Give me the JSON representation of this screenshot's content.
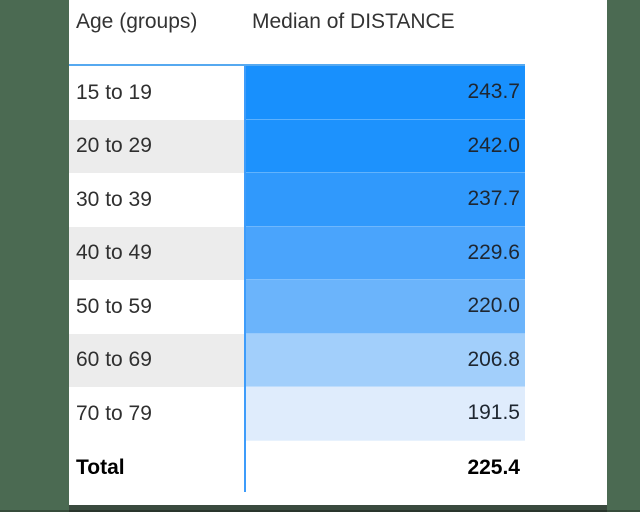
{
  "app": {
    "background_color": "#4b6a52",
    "panel_color": "#ffffff"
  },
  "chart_data": {
    "type": "table",
    "title": "",
    "columns": [
      "Age (groups)",
      "Median of DISTANCE"
    ],
    "rows": [
      {
        "label": "15 to 19",
        "value": "243.7",
        "fill": "#1890fd",
        "label_bg": "#ffffff"
      },
      {
        "label": "20 to 29",
        "value": "242.0",
        "fill": "#1d92fd",
        "label_bg": "#ececec"
      },
      {
        "label": "30 to 39",
        "value": "237.7",
        "fill": "#3099fc",
        "label_bg": "#ffffff"
      },
      {
        "label": "40 to 49",
        "value": "229.6",
        "fill": "#4aa4fc",
        "label_bg": "#ececec"
      },
      {
        "label": "50 to 59",
        "value": "220.0",
        "fill": "#6bb4fb",
        "label_bg": "#ffffff"
      },
      {
        "label": "60 to 69",
        "value": "206.8",
        "fill": "#a2cffb",
        "label_bg": "#ececec"
      },
      {
        "label": "70 to 79",
        "value": "191.5",
        "fill": "#dfecfc",
        "label_bg": "#ffffff"
      }
    ],
    "categories": [
      "15 to 19",
      "20 to 29",
      "30 to 39",
      "40 to 49",
      "50 to 59",
      "60 to 69",
      "70 to 79"
    ],
    "values": [
      243.7,
      242.0,
      237.7,
      229.6,
      220.0,
      206.8,
      191.5
    ],
    "total": {
      "label": "Total",
      "value": "225.4"
    },
    "legend_position": "none",
    "grid": {
      "header_underline_color": "#56a9f0",
      "column_divider_color": "#3e9cfa",
      "alt_row_color": "#ececec"
    }
  }
}
